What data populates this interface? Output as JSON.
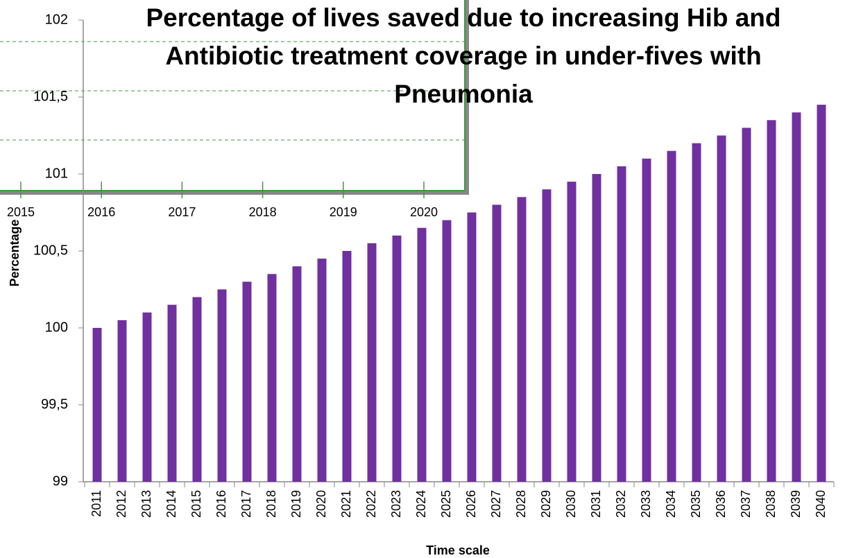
{
  "chart_data": [
    {
      "type": "bar",
      "title": [
        "Percentage of lives saved due to increasing Hib and",
        "Antibiotic treatment coverage  in under-fives with",
        "Pneumonia"
      ],
      "xlabel": "Time scale",
      "ylabel": "Percentage",
      "categories": [
        "2011",
        "2012",
        "2013",
        "2014",
        "2015",
        "2016",
        "2017",
        "2018",
        "2019",
        "2020",
        "2021",
        "2022",
        "2023",
        "2024",
        "2025",
        "2026",
        "2027",
        "2028",
        "2029",
        "2030",
        "2031",
        "2032",
        "2033",
        "2034",
        "2035",
        "2036",
        "2037",
        "2038",
        "2039",
        "2040"
      ],
      "values": [
        100,
        100.05,
        100.1,
        100.15,
        100.2,
        100.25,
        100.3,
        100.35,
        100.4,
        100.45,
        100.5,
        100.55,
        100.6,
        100.65,
        100.7,
        100.75,
        100.8,
        100.85,
        100.9,
        100.95,
        101,
        101.05,
        101.1,
        101.15,
        101.2,
        101.25,
        101.3,
        101.35,
        101.4,
        101.45
      ],
      "color": "#7030a0",
      "ylim": [
        99,
        102
      ],
      "yticks": [
        99,
        {
          "value": 99.5,
          "label": "99,5"
        },
        100,
        {
          "value": 100.5,
          "label": "100,5"
        },
        101,
        {
          "value": 101.5,
          "label": "101,5"
        },
        102
      ],
      "grid": false
    },
    {
      "type": "inset",
      "categories": [
        "2015",
        "2016",
        "2017",
        "2018",
        "2019",
        "2020"
      ],
      "color": "#3c9a3c",
      "grid": true
    }
  ]
}
